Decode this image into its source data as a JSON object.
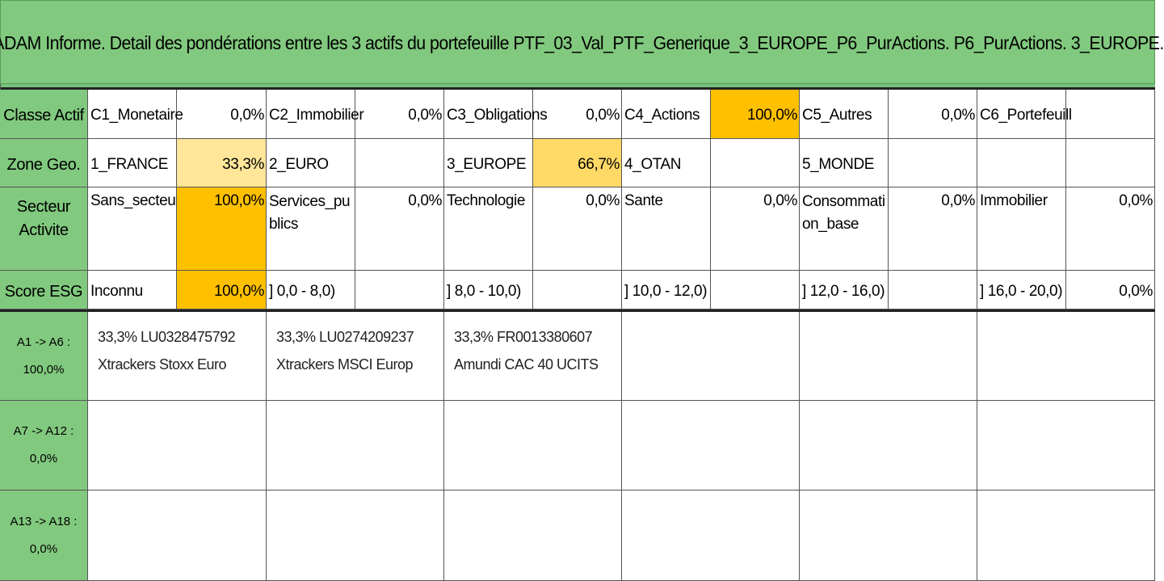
{
  "title": "ADAM Informe. Detail des pondérations entre les 3 actifs du portefeuille PTF_03_Val_PTF_Generique_3_EUROPE_P6_PurActions. P6_PurActions. 3_EUROPE.",
  "colors": {
    "header_green": "#81c97e",
    "highlight_orange": "#ffc000",
    "highlight_gold": "#ffd966",
    "highlight_cream": "#ffe699"
  },
  "classe_actif": {
    "label": "Classe Actif",
    "items": [
      {
        "name": "C1_Monetaire",
        "value": "0,0%"
      },
      {
        "name": "C2_Immobilier",
        "value": "0,0%"
      },
      {
        "name": "C3_Obligations",
        "value": "0,0%"
      },
      {
        "name": "C4_Actions",
        "value": "100,0%"
      },
      {
        "name": "C5_Autres",
        "value": "0,0%"
      },
      {
        "name": "C6_Portefeuill",
        "value": ""
      }
    ]
  },
  "zone_geo": {
    "label": "Zone Geo.",
    "items": [
      {
        "name": "1_FRANCE",
        "value": "33,3%"
      },
      {
        "name": "2_EURO",
        "value": ""
      },
      {
        "name": "3_EUROPE",
        "value": "66,7%"
      },
      {
        "name": "4_OTAN",
        "value": ""
      },
      {
        "name": "5_MONDE",
        "value": ""
      },
      {
        "name": "",
        "value": ""
      }
    ]
  },
  "secteur": {
    "label": "Secteur Activite",
    "items": [
      {
        "name": "Sans_secteur",
        "value": "100,0%"
      },
      {
        "name": "Services_publics",
        "value": "0,0%"
      },
      {
        "name": "Technologie",
        "value": "0,0%"
      },
      {
        "name": "Sante",
        "value": "0,0%"
      },
      {
        "name": "Consommation_base",
        "value": "0,0%"
      },
      {
        "name": "Immobilier",
        "value": "0,0%"
      }
    ]
  },
  "score_esg": {
    "label": "Score ESG",
    "items": [
      {
        "name": "Inconnu",
        "value": "100,0%"
      },
      {
        "name": "] 0,0 - 8,0)",
        "value": ""
      },
      {
        "name": "] 8,0 - 10,0)",
        "value": ""
      },
      {
        "name": "] 10,0 - 12,0)",
        "value": ""
      },
      {
        "name": "] 12,0 - 16,0)",
        "value": ""
      },
      {
        "name": "] 16,0 - 20,0)",
        "value": "0,0%"
      }
    ]
  },
  "asset_groups": [
    {
      "label": "A1 -> A6 : 100,0%",
      "assets": [
        {
          "weight_isin": "33,3% LU0328475792",
          "name": "Xtrackers Stoxx Euro"
        },
        {
          "weight_isin": "33,3% LU0274209237",
          "name": "Xtrackers MSCI Europ"
        },
        {
          "weight_isin": "33,3% FR0013380607",
          "name": "Amundi CAC 40 UCITS"
        }
      ]
    },
    {
      "label": "A7 -> A12 : 0,0%",
      "assets": []
    },
    {
      "label": "A13 -> A18 : 0,0%",
      "assets": []
    }
  ]
}
